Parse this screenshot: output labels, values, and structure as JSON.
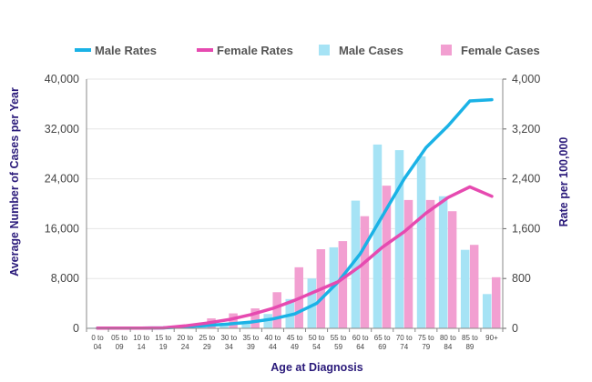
{
  "chart_data": {
    "type": "bar+line",
    "categories": [
      [
        "0 to",
        "04"
      ],
      [
        "05 to",
        "09"
      ],
      [
        "10 to",
        "14"
      ],
      [
        "15 to",
        "19"
      ],
      [
        "20 to",
        "24"
      ],
      [
        "25 to",
        "29"
      ],
      [
        "30 to",
        "34"
      ],
      [
        "35 to",
        "39"
      ],
      [
        "40 to",
        "44"
      ],
      [
        "45 to",
        "49"
      ],
      [
        "50 to",
        "54"
      ],
      [
        "55 to",
        "59"
      ],
      [
        "60 to",
        "64"
      ],
      [
        "65 to",
        "69"
      ],
      [
        "70 to",
        "74"
      ],
      [
        "75 to",
        "79"
      ],
      [
        "80 to",
        "84"
      ],
      [
        "85 to",
        "89"
      ],
      [
        "90+",
        ""
      ]
    ],
    "bar_series": [
      {
        "name": "Male Cases",
        "color": "#a6e3f5",
        "values": [
          100,
          20,
          20,
          60,
          200,
          350,
          600,
          1000,
          2300,
          4700,
          8000,
          13000,
          20500,
          29500,
          28600,
          27600,
          21200,
          12600,
          5500
        ]
      },
      {
        "name": "Female Cases",
        "color": "#f29fd1",
        "values": [
          80,
          20,
          20,
          60,
          500,
          1600,
          2400,
          3200,
          5800,
          9800,
          12700,
          14000,
          18000,
          22900,
          20600,
          20600,
          18800,
          13400,
          8200
        ]
      }
    ],
    "line_series": [
      {
        "name": "Male Rates",
        "color": "#1ab2e6",
        "values": [
          5,
          5,
          5,
          8,
          25,
          45,
          70,
          100,
          150,
          230,
          400,
          750,
          1200,
          1800,
          2400,
          2900,
          3250,
          3650,
          3670
        ]
      },
      {
        "name": "Female Rates",
        "color": "#e64ab0",
        "values": [
          5,
          5,
          5,
          8,
          40,
          85,
          140,
          220,
          320,
          450,
          600,
          750,
          1000,
          1300,
          1550,
          1850,
          2100,
          2270,
          2120
        ]
      }
    ],
    "y_left": {
      "label": "Average Number of Cases per Year",
      "min": 0,
      "max": 40000,
      "ticks": [
        "0",
        "8,000",
        "16,000",
        "24,000",
        "32,000",
        "40,000"
      ]
    },
    "y_right": {
      "label": "Rate per 100,000",
      "min": 0,
      "max": 4000,
      "ticks": [
        "0",
        "800",
        "1,600",
        "2,400",
        "3,200",
        "4,000"
      ]
    },
    "xlabel": "Age at Diagnosis",
    "legend": [
      "Male Rates",
      "Female Rates",
      "Male Cases",
      "Female Cases"
    ],
    "legend_position": "top"
  }
}
